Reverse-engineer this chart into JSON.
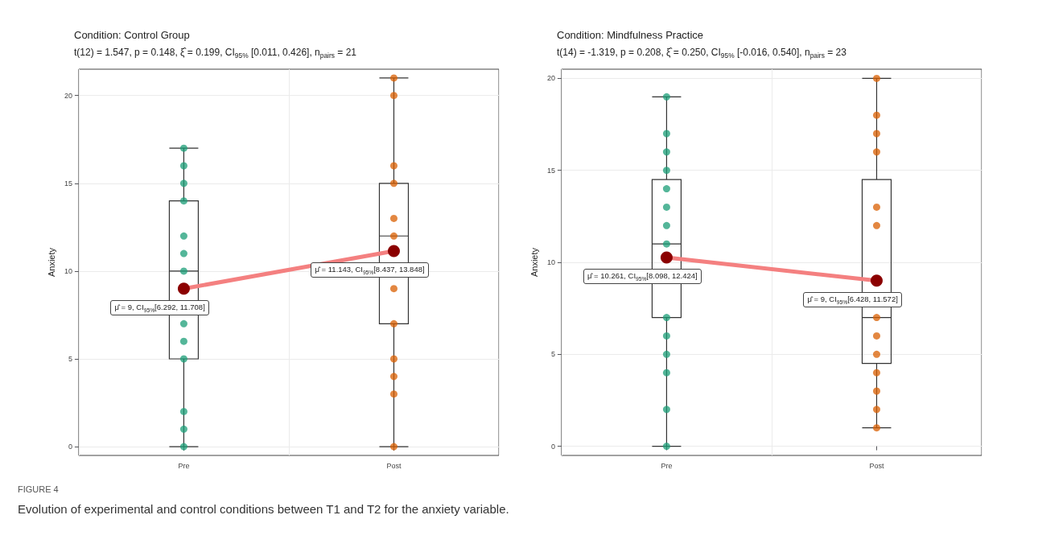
{
  "chart_data": [
    {
      "type": "box",
      "title": "Condition: Control Group",
      "subtitle": "t(12) = 1.547, p = 0.148, ξ̂ = 0.199, CI$_{95%}$ [0.011, 0.426], n$_{pairs}$ = 21",
      "ylabel": "Anxiety",
      "categories": [
        "Pre",
        "Post"
      ],
      "ylim": [
        -0.5,
        21.5
      ],
      "yticks": [
        0,
        5,
        10,
        15,
        20
      ],
      "grid": true,
      "series": [
        {
          "type": "box",
          "color": "#333333",
          "boxes": [
            {
              "low": 0,
              "q1": 5,
              "median": 10,
              "q3": 14,
              "high": 17
            },
            {
              "low": 0,
              "q1": 7,
              "median": 12,
              "q3": 15,
              "high": 21
            }
          ]
        },
        {
          "type": "scatter",
          "color": "#1b9e77",
          "x": [
            "Pre",
            "Pre",
            "Pre",
            "Pre",
            "Pre",
            "Pre",
            "Pre",
            "Pre",
            "Pre",
            "Pre",
            "Pre",
            "Pre",
            "Pre"
          ],
          "values": [
            0,
            1,
            2,
            5,
            6,
            7,
            10,
            11,
            12,
            14,
            15,
            16,
            17
          ]
        },
        {
          "type": "scatter",
          "color": "#d95f02",
          "x": [
            "Post",
            "Post",
            "Post",
            "Post",
            "Post",
            "Post",
            "Post",
            "Post",
            "Post",
            "Post",
            "Post",
            "Post"
          ],
          "values": [
            0,
            3,
            4,
            5,
            7,
            9,
            12,
            13,
            15,
            16,
            20,
            21
          ]
        },
        {
          "type": "line",
          "color": "#f48080",
          "x": [
            "Pre",
            "Post"
          ],
          "values": [
            9,
            11.143
          ]
        },
        {
          "type": "scatter",
          "color": "#8b0000",
          "x": [
            "Pre",
            "Post"
          ],
          "values": [
            9,
            11.143
          ]
        }
      ],
      "annotations": [
        {
          "text": "μ̂ = 9, CI$_{95%}$[6.292, 11.708]",
          "x": "Pre",
          "y": 9
        },
        {
          "text": "μ̂ = 11.143, CI$_{95%}$[8.437, 13.848]",
          "x": "Post",
          "y": 11.143
        },
        "FIGURE 4",
        "Evolution of experimental and control conditions between T1 and T2 for the anxiety variable."
      ]
    },
    {
      "type": "box",
      "title": "Condition: Mindfulness Practice",
      "subtitle": "t(14) = -1.319, p = 0.208, ξ̂ = 0.250, CI$_{95%}$ [-0.016, 0.540], n$_{pairs}$ = 23",
      "ylabel": "Anxiety",
      "categories": [
        "Pre",
        "Post"
      ],
      "ylim": [
        -0.5,
        20.5
      ],
      "yticks": [
        0,
        5,
        10,
        15,
        20
      ],
      "grid": true,
      "series": [
        {
          "type": "box",
          "color": "#333333",
          "boxes": [
            {
              "low": 0,
              "q1": 7,
              "median": 11,
              "q3": 14.5,
              "high": 19
            },
            {
              "low": 1,
              "q1": 4.5,
              "median": 7,
              "q3": 14.5,
              "high": 20
            }
          ]
        },
        {
          "type": "scatter",
          "color": "#1b9e77",
          "x": [
            "Pre",
            "Pre",
            "Pre",
            "Pre",
            "Pre",
            "Pre",
            "Pre",
            "Pre",
            "Pre",
            "Pre",
            "Pre",
            "Pre",
            "Pre",
            "Pre",
            "Pre"
          ],
          "values": [
            0,
            2,
            4,
            5,
            6,
            7,
            null,
            11,
            12,
            13,
            14,
            15,
            16,
            17,
            19
          ]
        },
        {
          "type": "scatter",
          "color": "#d95f02",
          "x": [
            "Post",
            "Post",
            "Post",
            "Post",
            "Post",
            "Post",
            "Post",
            "Post",
            "Post",
            "Post",
            "Post",
            "Post",
            "Post"
          ],
          "values": [
            1,
            2,
            3,
            4,
            5,
            6,
            7,
            12,
            13,
            16,
            17,
            18,
            20
          ]
        },
        {
          "type": "line",
          "color": "#f48080",
          "x": [
            "Pre",
            "Post"
          ],
          "values": [
            10.261,
            9
          ]
        },
        {
          "type": "scatter",
          "color": "#8b0000",
          "x": [
            "Pre",
            "Post"
          ],
          "values": [
            10.261,
            9
          ]
        }
      ],
      "annotations": [
        {
          "text": "μ̂ = 10.261, CI$_{95%}$[8.098, 12.424]",
          "x": "Pre",
          "y": 10.261
        },
        {
          "text": "μ̂ = 9, CI$_{95%}$[6.428, 11.572]",
          "x": "Post",
          "y": 9
        }
      ]
    }
  ]
}
